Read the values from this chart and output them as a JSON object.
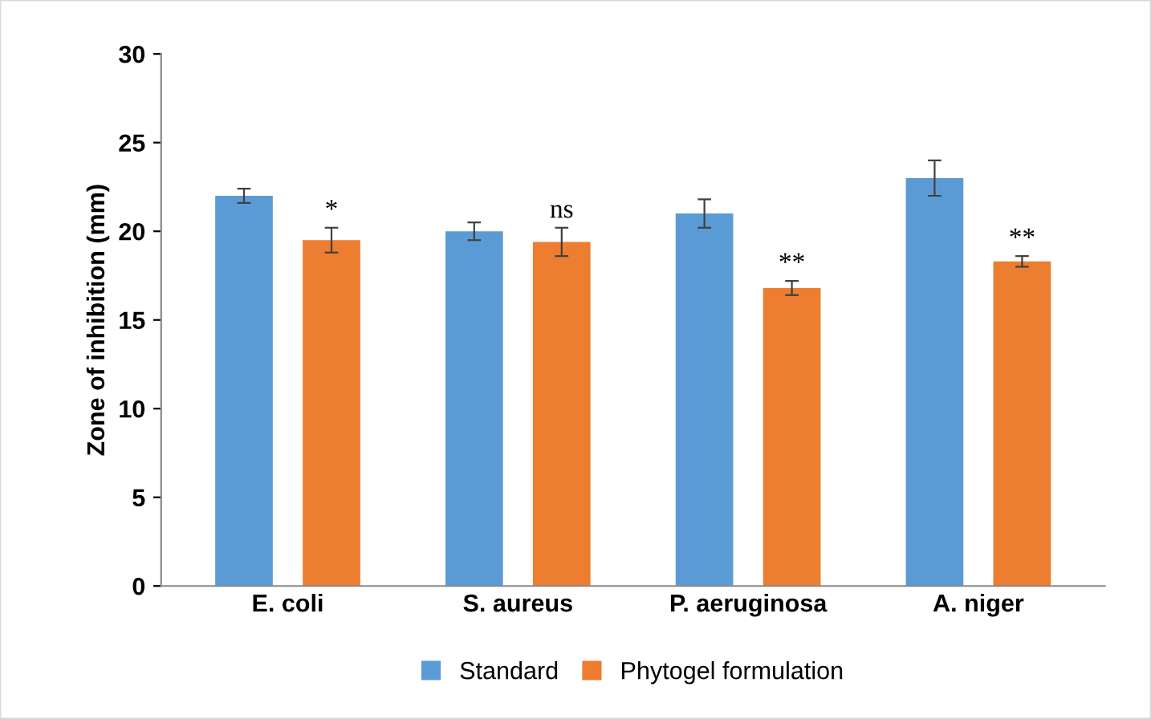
{
  "chart_data": {
    "type": "bar",
    "ylabel": "Zone of inhibition (mm)",
    "categories": [
      "E. coli",
      "S. aureus",
      "P. aeruginosa",
      "A. niger"
    ],
    "series": [
      {
        "name": "Standard",
        "color": "#5b9bd5",
        "values": [
          22,
          20,
          21,
          23
        ],
        "errors": [
          0.4,
          0.5,
          0.8,
          1.0
        ]
      },
      {
        "name": "Phytogel formulation",
        "color": "#ed7d31",
        "values": [
          19.5,
          19.4,
          16.8,
          18.3
        ],
        "errors": [
          0.7,
          0.8,
          0.4,
          0.3
        ]
      }
    ],
    "annotations": [
      "*",
      "ns",
      "**",
      "**"
    ],
    "ylim": [
      0,
      30
    ],
    "yticks": [
      0,
      5,
      10,
      15,
      20,
      25,
      30
    ],
    "grid": false,
    "legend": "bottom"
  }
}
